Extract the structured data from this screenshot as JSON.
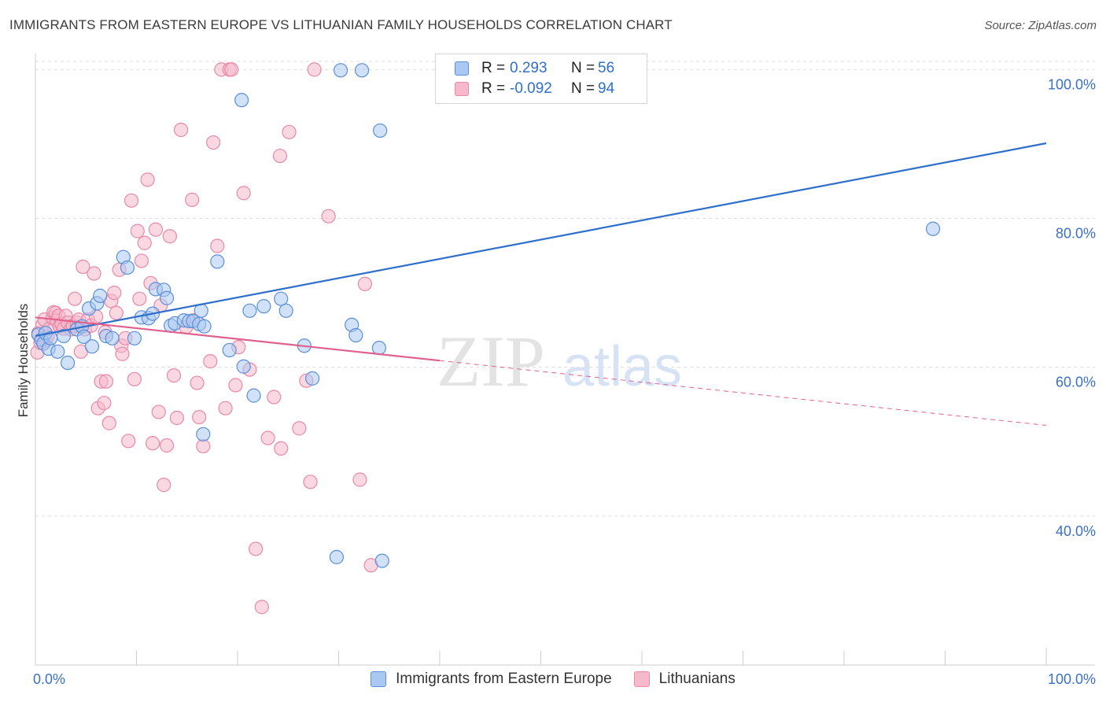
{
  "title": "IMMIGRANTS FROM EASTERN EUROPE VS LITHUANIAN FAMILY HOUSEHOLDS CORRELATION CHART",
  "source": "Source: ZipAtlas.com",
  "watermark": {
    "zip": "ZIP",
    "atlas": "atlas"
  },
  "colors": {
    "blue_fill": "#a9c8f2",
    "blue_stroke": "#5b8fd8",
    "blue_line": "#2f6fcc",
    "pink_fill": "#f6b8cb",
    "pink_stroke": "#e889a8",
    "pink_line": "#e0608e",
    "axis_text": "#3a6fc9",
    "grid": "#dddddd"
  },
  "legend": {
    "rows": [
      {
        "r_label": "R =",
        "r_value": "0.293",
        "n_label": "N =",
        "n_value": "56"
      },
      {
        "r_label": "R =",
        "r_value": "-0.092",
        "n_label": "N =",
        "n_value": "94"
      }
    ]
  },
  "bottom_legend": {
    "series1": "Immigrants from Eastern Europe",
    "series2": "Lithuanians"
  },
  "chart_data": {
    "type": "scatter",
    "title": "IMMIGRANTS FROM EASTERN EUROPE VS LITHUANIAN FAMILY HOUSEHOLDS CORRELATION CHART",
    "xlabel": "",
    "ylabel": "Family Households",
    "xlim": [
      0,
      100
    ],
    "ylim": [
      20,
      103
    ],
    "x_tick_labels": [
      "0.0%",
      "100.0%"
    ],
    "y_ticks": [
      40,
      60,
      80,
      100
    ],
    "y_tick_labels": [
      "40.0%",
      "60.0%",
      "80.0%",
      "100.0%"
    ],
    "series": [
      {
        "name": "Immigrants from Eastern Europe",
        "color": "#a9c8f2",
        "trend": {
          "x": [
            0,
            100
          ],
          "y": [
            64.2,
            90.1
          ],
          "solid_to": 100
        },
        "points": [
          [
            0.3,
            64.4
          ],
          [
            0.6,
            63.7
          ],
          [
            0.8,
            63.2
          ],
          [
            1.0,
            64.6
          ],
          [
            1.3,
            62.5
          ],
          [
            1.5,
            63.9
          ],
          [
            2.2,
            62.1
          ],
          [
            2.8,
            64.2
          ],
          [
            3.2,
            60.6
          ],
          [
            4.1,
            65.1
          ],
          [
            4.6,
            65.5
          ],
          [
            4.8,
            64.1
          ],
          [
            5.3,
            67.9
          ],
          [
            6.1,
            68.6
          ],
          [
            6.4,
            69.6
          ],
          [
            5.6,
            62.8
          ],
          [
            7.0,
            64.2
          ],
          [
            7.6,
            63.9
          ],
          [
            8.7,
            74.8
          ],
          [
            9.1,
            73.4
          ],
          [
            9.8,
            63.9
          ],
          [
            10.5,
            66.7
          ],
          [
            11.2,
            66.6
          ],
          [
            11.6,
            67.2
          ],
          [
            11.9,
            70.5
          ],
          [
            12.7,
            70.4
          ],
          [
            13.0,
            69.3
          ],
          [
            13.4,
            65.6
          ],
          [
            13.8,
            65.9
          ],
          [
            14.7,
            66.3
          ],
          [
            15.2,
            66.2
          ],
          [
            15.6,
            66.2
          ],
          [
            16.2,
            65.8
          ],
          [
            16.4,
            67.6
          ],
          [
            16.7,
            65.5
          ],
          [
            16.6,
            51.0
          ],
          [
            18.0,
            74.2
          ],
          [
            19.2,
            62.3
          ],
          [
            20.4,
            95.9
          ],
          [
            20.6,
            60.1
          ],
          [
            21.2,
            67.6
          ],
          [
            21.6,
            56.2
          ],
          [
            22.6,
            68.2
          ],
          [
            24.3,
            69.2
          ],
          [
            24.8,
            67.6
          ],
          [
            26.6,
            62.9
          ],
          [
            27.4,
            58.5
          ],
          [
            29.8,
            34.5
          ],
          [
            30.2,
            99.9
          ],
          [
            31.3,
            65.7
          ],
          [
            31.7,
            64.3
          ],
          [
            32.3,
            99.9
          ],
          [
            34.0,
            62.6
          ],
          [
            34.1,
            91.8
          ],
          [
            34.3,
            34.0
          ],
          [
            88.8,
            78.6
          ]
        ]
      },
      {
        "name": "Lithuanians",
        "color": "#f6b8cb",
        "trend": {
          "x": [
            0,
            100
          ],
          "y": [
            66.7,
            52.2
          ],
          "solid_to": 40
        },
        "points": [
          [
            0.2,
            62.0
          ],
          [
            0.3,
            64.6
          ],
          [
            0.5,
            63.3
          ],
          [
            0.7,
            65.7
          ],
          [
            0.9,
            66.4
          ],
          [
            1.0,
            63.6
          ],
          [
            1.2,
            64.1
          ],
          [
            1.4,
            65.2
          ],
          [
            1.7,
            66.6
          ],
          [
            1.8,
            67.4
          ],
          [
            2.0,
            67.3
          ],
          [
            2.1,
            66.3
          ],
          [
            2.3,
            66.9
          ],
          [
            2.4,
            65.5
          ],
          [
            2.6,
            65.8
          ],
          [
            2.8,
            65.2
          ],
          [
            3.0,
            66.9
          ],
          [
            3.2,
            66.0
          ],
          [
            3.5,
            65.1
          ],
          [
            3.7,
            65.6
          ],
          [
            4.1,
            66.0
          ],
          [
            4.3,
            66.4
          ],
          [
            4.5,
            62.1
          ],
          [
            4.7,
            73.5
          ],
          [
            4.9,
            65.1
          ],
          [
            5.2,
            66.4
          ],
          [
            5.5,
            65.6
          ],
          [
            5.8,
            72.6
          ],
          [
            6.0,
            66.8
          ],
          [
            6.2,
            54.5
          ],
          [
            6.5,
            58.1
          ],
          [
            6.8,
            55.2
          ],
          [
            7.0,
            58.1
          ],
          [
            7.3,
            52.5
          ],
          [
            7.5,
            68.9
          ],
          [
            7.8,
            70.0
          ],
          [
            8.0,
            67.3
          ],
          [
            8.3,
            73.1
          ],
          [
            8.5,
            62.9
          ],
          [
            8.9,
            63.9
          ],
          [
            9.2,
            50.1
          ],
          [
            9.5,
            82.4
          ],
          [
            9.8,
            58.4
          ],
          [
            10.1,
            78.3
          ],
          [
            10.5,
            74.3
          ],
          [
            10.8,
            76.7
          ],
          [
            11.1,
            85.2
          ],
          [
            11.4,
            71.3
          ],
          [
            11.6,
            49.8
          ],
          [
            11.9,
            78.5
          ],
          [
            12.2,
            54.0
          ],
          [
            12.7,
            44.2
          ],
          [
            13.0,
            49.5
          ],
          [
            13.3,
            77.6
          ],
          [
            13.7,
            58.9
          ],
          [
            14.0,
            53.2
          ],
          [
            14.4,
            91.9
          ],
          [
            14.9,
            65.4
          ],
          [
            15.5,
            82.5
          ],
          [
            15.6,
            66.3
          ],
          [
            16.2,
            53.3
          ],
          [
            16.6,
            49.4
          ],
          [
            17.3,
            60.8
          ],
          [
            17.6,
            90.2
          ],
          [
            18.0,
            76.3
          ],
          [
            18.4,
            100.0
          ],
          [
            18.8,
            54.5
          ],
          [
            19.2,
            100.0
          ],
          [
            19.8,
            57.6
          ],
          [
            20.6,
            83.4
          ],
          [
            21.2,
            59.7
          ],
          [
            21.8,
            35.6
          ],
          [
            22.4,
            27.8
          ],
          [
            23.0,
            50.5
          ],
          [
            23.6,
            56.0
          ],
          [
            24.3,
            49.1
          ],
          [
            25.1,
            91.6
          ],
          [
            26.1,
            51.8
          ],
          [
            26.8,
            58.2
          ],
          [
            27.2,
            44.6
          ],
          [
            27.6,
            100.0
          ],
          [
            29.0,
            80.3
          ],
          [
            32.1,
            44.9
          ],
          [
            32.6,
            71.2
          ],
          [
            33.2,
            33.4
          ],
          [
            16.0,
            57.9
          ],
          [
            20.1,
            62.7
          ],
          [
            10.3,
            69.2
          ],
          [
            12.4,
            68.3
          ],
          [
            19.4,
            100.0
          ],
          [
            24.2,
            88.4
          ],
          [
            8.6,
            61.8
          ],
          [
            6.9,
            64.7
          ],
          [
            3.9,
            69.2
          ]
        ]
      }
    ]
  }
}
